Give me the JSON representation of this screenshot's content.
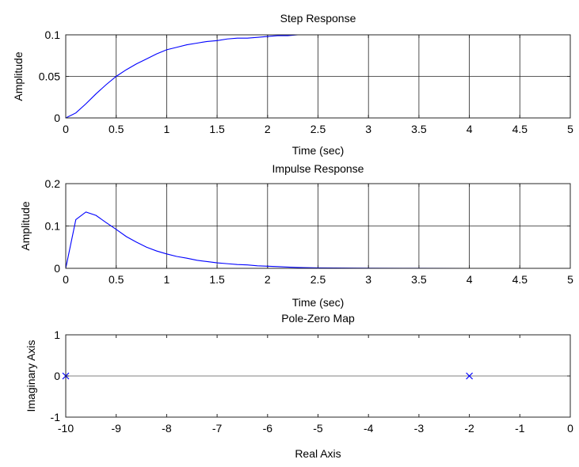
{
  "chart_data": [
    {
      "type": "line",
      "title": "Step Response",
      "xlabel": "Time (sec)",
      "ylabel": "Amplitude",
      "xlim": [
        0,
        5
      ],
      "ylim": [
        0,
        0.1
      ],
      "xticks": [
        0,
        0.5,
        1,
        1.5,
        2,
        2.5,
        3,
        3.5,
        4,
        4.5,
        5
      ],
      "yticks": [
        0,
        0.05,
        0.1
      ],
      "xtick_labels": [
        "0",
        "0.5",
        "1",
        "1.5",
        "2",
        "2.5",
        "3",
        "3.5",
        "4",
        "4.5",
        "5"
      ],
      "ytick_labels": [
        "0",
        "0.05",
        "0.1"
      ],
      "grid": true,
      "line_color": "#0000ff",
      "series": [
        {
          "x": [
            0,
            0.1,
            0.2,
            0.3,
            0.4,
            0.5,
            0.6,
            0.7,
            0.8,
            0.9,
            1.0,
            1.1,
            1.2,
            1.3,
            1.4,
            1.5,
            1.6,
            1.7,
            1.8,
            1.9,
            2.0,
            2.1,
            2.2,
            2.3,
            2.5,
            3.0,
            3.5,
            4.0,
            4.5,
            5.0
          ],
          "y": [
            0,
            0.006,
            0.017,
            0.029,
            0.04,
            0.05,
            0.058,
            0.065,
            0.071,
            0.077,
            0.082,
            0.085,
            0.088,
            0.09,
            0.092,
            0.093,
            0.095,
            0.096,
            0.096,
            0.097,
            0.098,
            0.099,
            0.099,
            0.1,
            0.1,
            0.1,
            0.1,
            0.1,
            0.1,
            0.1
          ]
        }
      ]
    },
    {
      "type": "line",
      "title": "Impulse Response",
      "xlabel": "Time (sec)",
      "ylabel": "Amplitude",
      "xlim": [
        0,
        5
      ],
      "ylim": [
        0,
        0.2
      ],
      "xticks": [
        0,
        0.5,
        1,
        1.5,
        2,
        2.5,
        3,
        3.5,
        4,
        4.5,
        5
      ],
      "yticks": [
        0,
        0.1,
        0.2
      ],
      "xtick_labels": [
        "0",
        "0.5",
        "1",
        "1.5",
        "2",
        "2.5",
        "3",
        "3.5",
        "4",
        "4.5",
        "5"
      ],
      "ytick_labels": [
        "0",
        "0.1",
        "0.2"
      ],
      "grid": true,
      "line_color": "#0000ff",
      "series": [
        {
          "x": [
            0,
            0.1,
            0.2,
            0.3,
            0.4,
            0.5,
            0.6,
            0.7,
            0.8,
            0.9,
            1.0,
            1.1,
            1.2,
            1.3,
            1.4,
            1.5,
            1.6,
            1.7,
            1.8,
            1.9,
            2.0,
            2.1,
            2.2,
            2.3,
            2.5,
            3.0,
            3.5,
            4.0,
            4.5,
            5.0
          ],
          "y": [
            0,
            0.115,
            0.133,
            0.125,
            0.108,
            0.092,
            0.075,
            0.062,
            0.05,
            0.041,
            0.034,
            0.028,
            0.024,
            0.019,
            0.016,
            0.013,
            0.011,
            0.009,
            0.008,
            0.006,
            0.005,
            0.004,
            0.003,
            0.002,
            0.001,
            0.0003,
            0.0001,
            0,
            0,
            0
          ]
        }
      ]
    },
    {
      "type": "scatter",
      "title": "Pole-Zero Map",
      "xlabel": "Real Axis",
      "ylabel": "Imaginary Axis",
      "xlim": [
        -10,
        0
      ],
      "ylim": [
        -1,
        1
      ],
      "xticks": [
        -10,
        -9,
        -8,
        -7,
        -6,
        -5,
        -4,
        -3,
        -2,
        -1,
        0
      ],
      "yticks": [
        -1,
        0,
        1
      ],
      "xtick_labels": [
        "-10",
        "-9",
        "-8",
        "-7",
        "-6",
        "-5",
        "-4",
        "-3",
        "-2",
        "-1",
        "0"
      ],
      "ytick_labels": [
        "-1",
        "0",
        "1"
      ],
      "grid": false,
      "marker": "x",
      "marker_color": "#0000ff",
      "series": [
        {
          "x": [
            -10,
            -2
          ],
          "y": [
            0,
            0
          ]
        }
      ]
    }
  ]
}
